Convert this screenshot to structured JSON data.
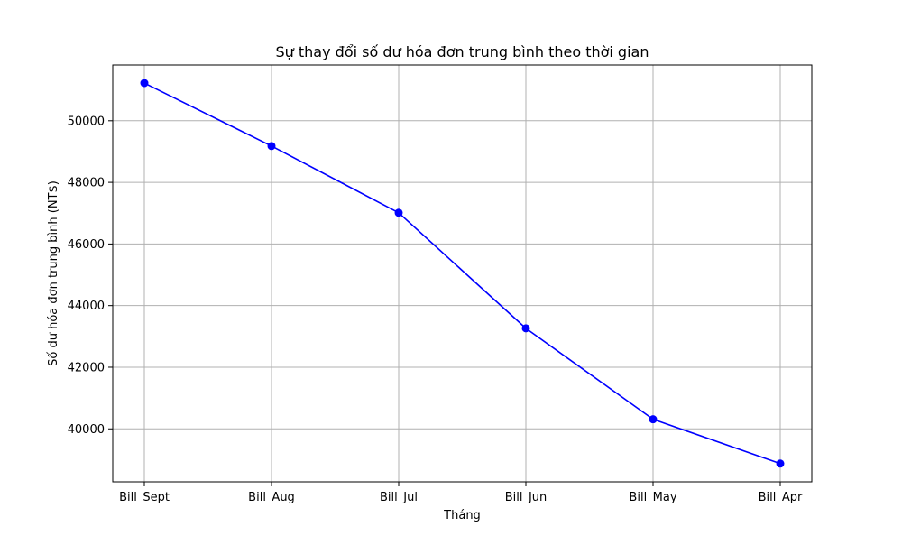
{
  "chart_data": {
    "type": "line",
    "title": "Sự thay đổi số dư hóa đơn trung bình theo thời gian",
    "xlabel": "Tháng",
    "ylabel": "Số dư hóa đơn trung bình (NT$)",
    "categories": [
      "Bill_Sept",
      "Bill_Aug",
      "Bill_Jul",
      "Bill_Jun",
      "Bill_May",
      "Bill_Apr"
    ],
    "series": [
      {
        "values": [
          51223,
          49179,
          47013,
          43263,
          40311,
          38872
        ],
        "color": "#0000ff",
        "marker": "circle"
      }
    ],
    "ylim": [
      38280,
      51810
    ],
    "yticks": [
      40000,
      42000,
      44000,
      46000,
      48000,
      50000
    ],
    "ytick_labels": [
      "40000",
      "42000",
      "44000",
      "46000",
      "48000",
      "50000"
    ],
    "grid": true,
    "grid_color": "#b0b0b0",
    "legend": false
  }
}
